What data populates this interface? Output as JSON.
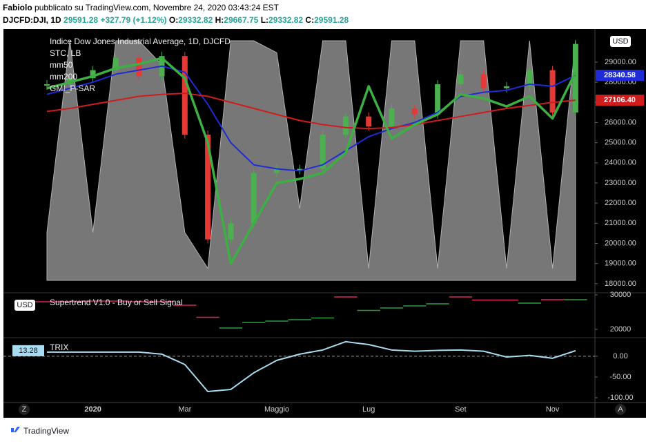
{
  "header": {
    "author": "Fabiolo",
    "published": "pubblicato su TradingView.com, Novembre 24, 2020 03:43:24 EST",
    "symbol": "DJCFD:DJI, 1D",
    "last": "29591.28",
    "change": "+327.79 (+1.12%)",
    "ohlc": [
      {
        "label": "O:",
        "value": "29332.82"
      },
      {
        "label": "H:",
        "value": "29667.75"
      },
      {
        "label": "L:",
        "value": "29332.82"
      },
      {
        "label": "C:",
        "value": "29591.28"
      }
    ]
  },
  "chart_data": [
    {
      "type": "line",
      "title": "Indice Dow Jones Industrial Average, 1D, DJCFD",
      "currency": "USD",
      "categories": [
        null,
        null,
        "2020",
        null,
        null,
        null,
        "Mar",
        null,
        null,
        null,
        "Maggio",
        null,
        null,
        null,
        "Lug",
        null,
        null,
        null,
        "Set",
        null,
        null,
        null,
        "Nov",
        null
      ],
      "ylim": [
        17550,
        30470
      ],
      "y2lim": [
        0,
        100
      ],
      "yticks": [
        {
          "value": 18000,
          "label": "18000.00"
        },
        {
          "value": 19000,
          "label": "19000.00"
        },
        {
          "value": 20000,
          "label": "20000.00"
        },
        {
          "value": 21000,
          "label": "21000.00"
        },
        {
          "value": 22000,
          "label": "22000.00"
        },
        {
          "value": 23000,
          "label": "23000.00"
        },
        {
          "value": 24000,
          "label": "24000.00"
        },
        {
          "value": 25000,
          "label": "25000.00"
        },
        {
          "value": 26000,
          "label": "26000.00"
        },
        {
          "value": 27000,
          "label": "27000.00"
        },
        {
          "value": 28000,
          "label": "28000.00"
        },
        {
          "value": 29000,
          "label": "29000.00"
        }
      ],
      "series": [
        {
          "name": "STC, LB",
          "color": "#8c8c8c",
          "axis": "y2",
          "values": [
            20,
            100,
            20,
            100,
            100,
            90,
            20,
            5,
            100,
            100,
            95,
            30,
            100,
            100,
            5,
            100,
            100,
            5,
            100,
            100,
            5,
            100,
            5,
            100
          ]
        },
        {
          "up_color": "#4caf50",
          "down_color": "#e53935",
          "values": [
            27900,
            28200,
            28600,
            29200,
            28300,
            29300,
            25400,
            20200,
            21000,
            23500,
            23700,
            23700,
            25400,
            26300,
            25800,
            26700,
            26400,
            27900,
            28400,
            27700,
            27800,
            28600,
            26500,
            29900
          ]
        },
        {
          "name": "mm50",
          "color": "#1e2bd6",
          "line_width": 2,
          "values": [
            27400,
            27700,
            28000,
            28400,
            28600,
            28800,
            28500,
            26900,
            25000,
            23900,
            23700,
            23600,
            23900,
            24600,
            25300,
            25700,
            26000,
            26500,
            27300,
            27500,
            27600,
            27900,
            27800,
            28340
          ]
        },
        {
          "name": "mm200",
          "color": "#d01c1c",
          "line_width": 2,
          "values": [
            26550,
            26700,
            26900,
            27100,
            27300,
            27400,
            27450,
            27300,
            27000,
            26700,
            26400,
            26100,
            25900,
            25750,
            25700,
            25750,
            25900,
            26100,
            26300,
            26500,
            26700,
            26850,
            27000,
            27106
          ]
        },
        {
          "name": "GMI_P-SAR",
          "color": "#3cb043",
          "line_width": 3.5,
          "values": [
            27700,
            28000,
            28300,
            28700,
            28900,
            29200,
            28200,
            25000,
            19000,
            21000,
            23000,
            23200,
            23500,
            24500,
            27800,
            25200,
            25900,
            26400,
            27400,
            27200,
            26800,
            27300,
            26200,
            28500
          ]
        }
      ],
      "price_labels": [
        {
          "value": 28340.58,
          "label": "28340.58",
          "color": "#1e2bd6"
        },
        {
          "value": 27106.4,
          "label": "27106.40",
          "color": "#d01c1c"
        }
      ]
    },
    {
      "type": "step",
      "title": "Supertrend V1.0 - Buy or Sell Signal",
      "currency": "USD",
      "ylim": [
        17800,
        30400
      ],
      "yticks": [
        20000,
        30000
      ],
      "series": [
        {
          "color": "#e0245e",
          "values": [
            28000,
            28000,
            28200,
            28200,
            28000,
            28000,
            27000,
            23500,
            null,
            null,
            null,
            null,
            null,
            29400,
            null,
            null,
            null,
            null,
            29400,
            28500,
            28500,
            null,
            28600,
            null
          ]
        },
        {
          "color": "#2e9e3e",
          "values": [
            null,
            null,
            null,
            null,
            null,
            null,
            null,
            null,
            20400,
            22000,
            22400,
            22800,
            23300,
            null,
            25500,
            26200,
            26800,
            27400,
            null,
            null,
            null,
            27600,
            null,
            28600
          ]
        }
      ]
    },
    {
      "type": "line",
      "title": "TRIX",
      "ylim": [
        -110,
        43
      ],
      "zero_line": true,
      "yticks": [
        {
          "value": 0,
          "label": "0.00"
        },
        {
          "value": -50,
          "label": "-50.00"
        },
        {
          "value": -100,
          "label": "-100.00"
        }
      ],
      "series": [
        {
          "color": "#a8dcf0",
          "values": [
            10,
            10,
            10,
            10,
            10,
            5,
            -20,
            -85,
            -80,
            -40,
            -10,
            5,
            15,
            35,
            28,
            15,
            12,
            14,
            15,
            12,
            -2,
            2,
            -5,
            13.28
          ]
        }
      ],
      "last_label": 13.28
    }
  ],
  "footer": {
    "brand": "TradingView",
    "left_button": "Z",
    "right_button": "A"
  }
}
